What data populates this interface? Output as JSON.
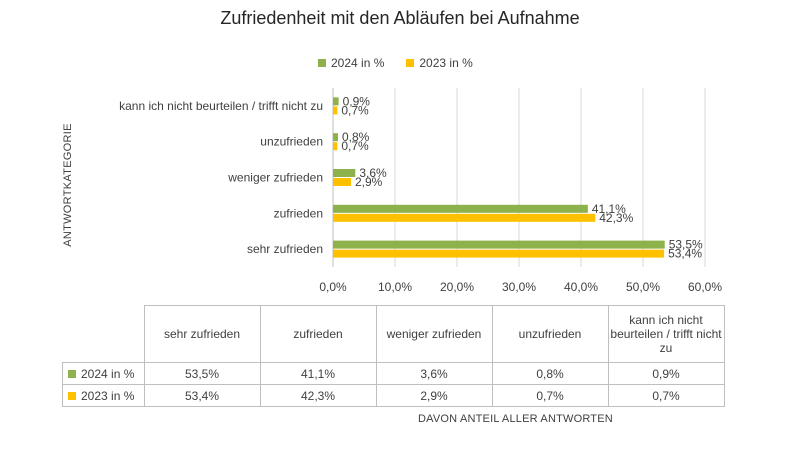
{
  "chart_data": {
    "type": "bar",
    "orientation": "horizontal",
    "title": "Zufriedenheit mit den Abläufen bei Aufnahme",
    "xlabel": "DAVON ANTEIL ALLER ANTWORTEN",
    "ylabel": "ANTWORTKATEGORIE",
    "xlim": [
      0,
      60
    ],
    "x_ticks": [
      "0,0%",
      "10,0%",
      "20,0%",
      "30,0%",
      "40,0%",
      "50,0%",
      "60,0%"
    ],
    "grid": true,
    "legend_position": "top",
    "categories": [
      "sehr zufrieden",
      "zufrieden",
      "weniger zufrieden",
      "unzufrieden",
      "kann ich nicht beurteilen / trifft nicht zu"
    ],
    "table_headers": [
      "sehr zufrieden",
      "zufrieden",
      "weniger zufrieden",
      "unzufrieden",
      "kann ich nicht beurteilen / trifft nicht zu"
    ],
    "series": [
      {
        "name": "2024 in %",
        "color": "#8db14b",
        "values": [
          53.5,
          41.1,
          3.6,
          0.8,
          0.9
        ],
        "labels": [
          "53,5%",
          "41,1%",
          "3,6%",
          "0,8%",
          "0,9%"
        ]
      },
      {
        "name": "2023 in %",
        "color": "#ffc000",
        "values": [
          53.4,
          42.3,
          2.9,
          0.7,
          0.7
        ],
        "labels": [
          "53,4%",
          "42,3%",
          "2,9%",
          "0,7%",
          "0,7%"
        ]
      }
    ]
  }
}
